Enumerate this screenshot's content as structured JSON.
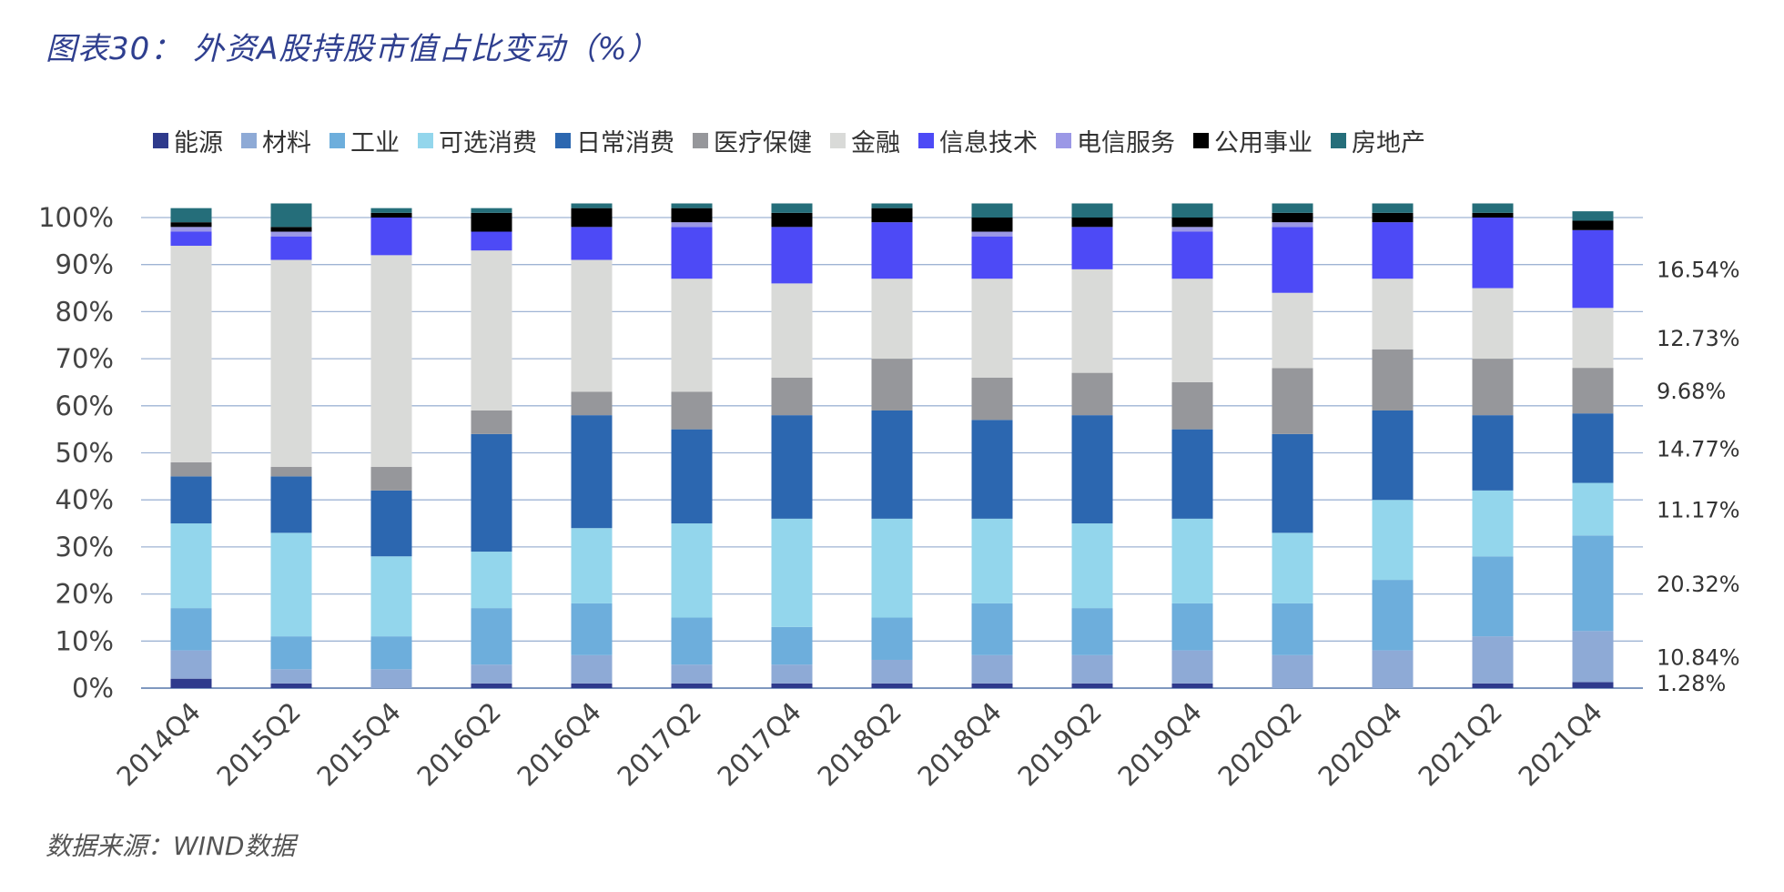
{
  "title": "图表30： 外资A股持股市值占比变动（%）",
  "source": "数据来源：WIND数据",
  "chart_data": {
    "type": "bar",
    "stacked": true,
    "categories": [
      "2014Q4",
      "2015Q2",
      "2015Q4",
      "2016Q2",
      "2016Q4",
      "2017Q2",
      "2017Q4",
      "2018Q2",
      "2018Q4",
      "2019Q2",
      "2019Q4",
      "2020Q2",
      "2020Q4",
      "2021Q2",
      "2021Q4"
    ],
    "ylim": [
      0,
      100
    ],
    "y_ticks": [
      "0%",
      "10%",
      "20%",
      "30%",
      "40%",
      "50%",
      "60%",
      "70%",
      "80%",
      "90%",
      "100%"
    ],
    "grid": true,
    "legend_position": "top",
    "series": [
      {
        "name": "能源",
        "color": "#2e3a8c",
        "values": [
          2,
          1,
          0,
          1,
          1,
          1,
          1,
          1,
          1,
          1,
          1,
          0,
          0,
          1,
          1.28
        ]
      },
      {
        "name": "材料",
        "color": "#8eaad6",
        "values": [
          6,
          3,
          4,
          4,
          6,
          4,
          4,
          5,
          6,
          6,
          7,
          7,
          8,
          10,
          10.84
        ]
      },
      {
        "name": "工业",
        "color": "#6daedc",
        "values": [
          9,
          7,
          7,
          12,
          11,
          10,
          8,
          9,
          11,
          10,
          10,
          11,
          15,
          17,
          20.32
        ]
      },
      {
        "name": "可选消费",
        "color": "#93d6ec",
        "values": [
          18,
          22,
          17,
          12,
          16,
          20,
          23,
          21,
          18,
          18,
          18,
          15,
          17,
          14,
          11.17
        ]
      },
      {
        "name": "日常消费",
        "color": "#2c67b0",
        "values": [
          10,
          12,
          14,
          25,
          24,
          20,
          22,
          23,
          21,
          23,
          19,
          21,
          19,
          16,
          14.77
        ]
      },
      {
        "name": "医疗保健",
        "color": "#96979b",
        "values": [
          3,
          2,
          5,
          5,
          5,
          8,
          8,
          11,
          9,
          9,
          10,
          14,
          13,
          12,
          9.68
        ]
      },
      {
        "name": "金融",
        "color": "#d9dad8",
        "values": [
          46,
          44,
          45,
          34,
          28,
          24,
          20,
          17,
          21,
          22,
          22,
          16,
          15,
          15,
          12.73
        ]
      },
      {
        "name": "信息技术",
        "color": "#4d4af6",
        "values": [
          3,
          5,
          8,
          4,
          7,
          11,
          12,
          12,
          9,
          9,
          10,
          14,
          12,
          15,
          16.54
        ]
      },
      {
        "name": "电信服务",
        "color": "#9b98e6",
        "values": [
          1,
          1,
          0,
          0,
          0,
          1,
          0,
          0,
          1,
          0,
          1,
          1,
          0,
          0,
          0
        ]
      },
      {
        "name": "公用事业",
        "color": "#000000",
        "values": [
          1,
          1,
          1,
          4,
          4,
          3,
          3,
          3,
          3,
          2,
          2,
          2,
          2,
          1,
          2
        ]
      },
      {
        "name": "房地产",
        "color": "#256e7a",
        "values": [
          3,
          5,
          1,
          1,
          1,
          1,
          2,
          1,
          3,
          3,
          3,
          2,
          2,
          2,
          2
        ]
      }
    ],
    "right_labels": [
      {
        "text": "16.54%",
        "series": "信息技术"
      },
      {
        "text": "12.73%",
        "series": "金融"
      },
      {
        "text": "9.68%",
        "series": "医疗保健"
      },
      {
        "text": "14.77%",
        "series": "日常消费"
      },
      {
        "text": "11.17%",
        "series": "可选消费"
      },
      {
        "text": "20.32%",
        "series": "工业"
      },
      {
        "text": "10.84%",
        "series": "材料"
      },
      {
        "text": "1.28%",
        "series": "能源"
      }
    ]
  }
}
